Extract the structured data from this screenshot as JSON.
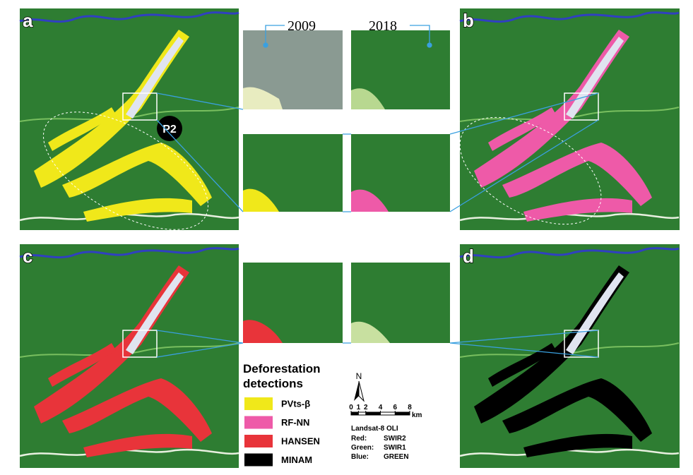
{
  "panels": [
    {
      "label": "a"
    },
    {
      "label": "b"
    },
    {
      "label": "c"
    },
    {
      "label": "d"
    }
  ],
  "marker": "P2",
  "inset_years": [
    "2009",
    "2018"
  ],
  "legend": {
    "title": "Deforestation detections",
    "items": [
      {
        "label": "PVts-β",
        "color": "#f0e81a"
      },
      {
        "label": "RF-NN",
        "color": "#ee5aa8"
      },
      {
        "label": "HANSEN",
        "color": "#e8343a"
      },
      {
        "label": "MINAM",
        "color": "#000000"
      }
    ]
  },
  "north_arrow": "N",
  "scale_bar": {
    "ticks": [
      0,
      1,
      2,
      4,
      6,
      8
    ],
    "unit": "km"
  },
  "band_info": {
    "sensor": "Landsat-8 OLI",
    "bands": [
      {
        "channel": "Red:",
        "band": "SWIR2"
      },
      {
        "channel": "Green:",
        "band": "SWIR1"
      },
      {
        "channel": "Blue:",
        "band": "GREEN"
      }
    ]
  }
}
